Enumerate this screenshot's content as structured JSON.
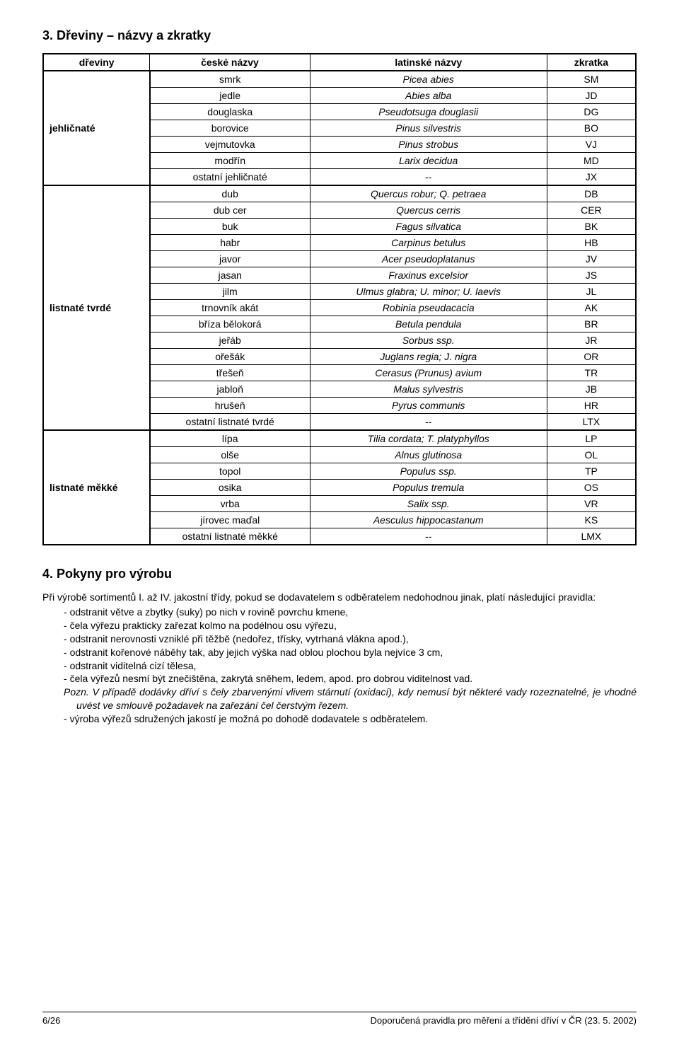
{
  "section3": {
    "heading": "3.  Dřeviny – názvy a zkratky",
    "columns": [
      "dřeviny",
      "české názvy",
      "latinské názvy",
      "zkratka"
    ],
    "groups": [
      {
        "name": "jehličnaté",
        "rows": [
          {
            "czech": "smrk",
            "latin": "Picea abies",
            "abbr": "SM"
          },
          {
            "czech": "jedle",
            "latin": "Abies alba",
            "abbr": "JD"
          },
          {
            "czech": "douglaska",
            "latin": "Pseudotsuga douglasii",
            "abbr": "DG"
          },
          {
            "czech": "borovice",
            "latin": "Pinus silvestris",
            "abbr": "BO"
          },
          {
            "czech": "vejmutovka",
            "latin": "Pinus strobus",
            "abbr": "VJ"
          },
          {
            "czech": "modřín",
            "latin": "Larix decidua",
            "abbr": "MD"
          },
          {
            "czech": "ostatní jehličnaté",
            "latin": "--",
            "abbr": "JX"
          }
        ]
      },
      {
        "name": "listnaté tvrdé",
        "rows": [
          {
            "czech": "dub",
            "latin": "Quercus robur; Q. petraea",
            "abbr": "DB"
          },
          {
            "czech": "dub cer",
            "latin": "Quercus cerris",
            "abbr": "CER"
          },
          {
            "czech": "buk",
            "latin": "Fagus silvatica",
            "abbr": "BK"
          },
          {
            "czech": "habr",
            "latin": "Carpinus betulus",
            "abbr": "HB"
          },
          {
            "czech": "javor",
            "latin": "Acer pseudoplatanus",
            "abbr": "JV"
          },
          {
            "czech": "jasan",
            "latin": "Fraxinus excelsior",
            "abbr": "JS"
          },
          {
            "czech": "jilm",
            "latin": "Ulmus glabra; U. minor; U. laevis",
            "abbr": "JL"
          },
          {
            "czech": "trnovník akát",
            "latin": "Robinia pseudacacia",
            "abbr": "AK"
          },
          {
            "czech": "bříza bělokorá",
            "latin": "Betula pendula",
            "abbr": "BR"
          },
          {
            "czech": "jeřáb",
            "latin": "Sorbus ssp.",
            "abbr": "JR"
          },
          {
            "czech": "ořešák",
            "latin": "Juglans regia; J. nigra",
            "abbr": "OR"
          },
          {
            "czech": "třešeň",
            "latin": "Cerasus (Prunus) avium",
            "abbr": "TR"
          },
          {
            "czech": "jabloň",
            "latin": "Malus sylvestris",
            "abbr": "JB"
          },
          {
            "czech": "hrušeň",
            "latin": "Pyrus communis",
            "abbr": "HR"
          },
          {
            "czech": "ostatní listnaté tvrdé",
            "latin": "--",
            "abbr": "LTX"
          }
        ]
      },
      {
        "name": "listnaté měkké",
        "rows": [
          {
            "czech": "lípa",
            "latin": "Tilia cordata; T. platyphyllos",
            "abbr": "LP"
          },
          {
            "czech": "olše",
            "latin": "Alnus glutinosa",
            "abbr": "OL"
          },
          {
            "czech": "topol",
            "latin": "Populus ssp.",
            "abbr": "TP"
          },
          {
            "czech": "osika",
            "latin": "Populus tremula",
            "abbr": "OS"
          },
          {
            "czech": "vrba",
            "latin": "Salix ssp.",
            "abbr": "VR"
          },
          {
            "czech": "jírovec maďal",
            "latin": "Aesculus hippocastanum",
            "abbr": "KS"
          },
          {
            "czech": "ostatní listnaté měkké",
            "latin": "--",
            "abbr": "LMX"
          }
        ]
      }
    ],
    "table_style": {
      "border_color": "#000000",
      "outer_border_width": 2.5,
      "inner_border_width": 1,
      "header_fontsize": 14,
      "cell_fontsize": 14,
      "latin_italic": true
    }
  },
  "section4": {
    "heading": "4.  Pokyny pro výrobu",
    "intro": "Při výrobě sortimentů I. až IV. jakostní třídy, pokud se dodavatelem s odběratelem nedohodnou jinak, platí následující pravidla:",
    "items": [
      "odstranit větve a zbytky (suky) po nich v rovině povrchu kmene,",
      "čela výřezu prakticky zařezat kolmo na podélnou osu výřezu,",
      "odstranit nerovnosti vzniklé při těžbě (nedořez, třísky, vytrhaná vlákna apod.),",
      "odstranit kořenové náběhy tak, aby jejich výška nad oblou plochou byla nejvíce 3 cm,",
      "odstranit viditelná cizí tělesa,",
      "čela výřezů nesmí být znečištěna, zakrytá sněhem, ledem, apod. pro dobrou viditelnost vad. ",
      "výroba výřezů sdružených jakostí je možná po dohodě dodavatele s odběratelem."
    ],
    "note_label": "Pozn.",
    "note_text": " V případě dodávky dříví s čely zbarvenými vlivem stárnutí (oxidací), kdy nemusí být některé vady rozeznatelné, je vhodné uvést ve smlouvě požadavek na zařezání čel čerstvým řezem."
  },
  "footer": {
    "page": "6/26",
    "title": "Doporučená pravidla pro měření a třídění dříví v ČR (23. 5. 2002)"
  },
  "colors": {
    "background": "#ffffff",
    "text": "#000000",
    "border": "#000000"
  }
}
